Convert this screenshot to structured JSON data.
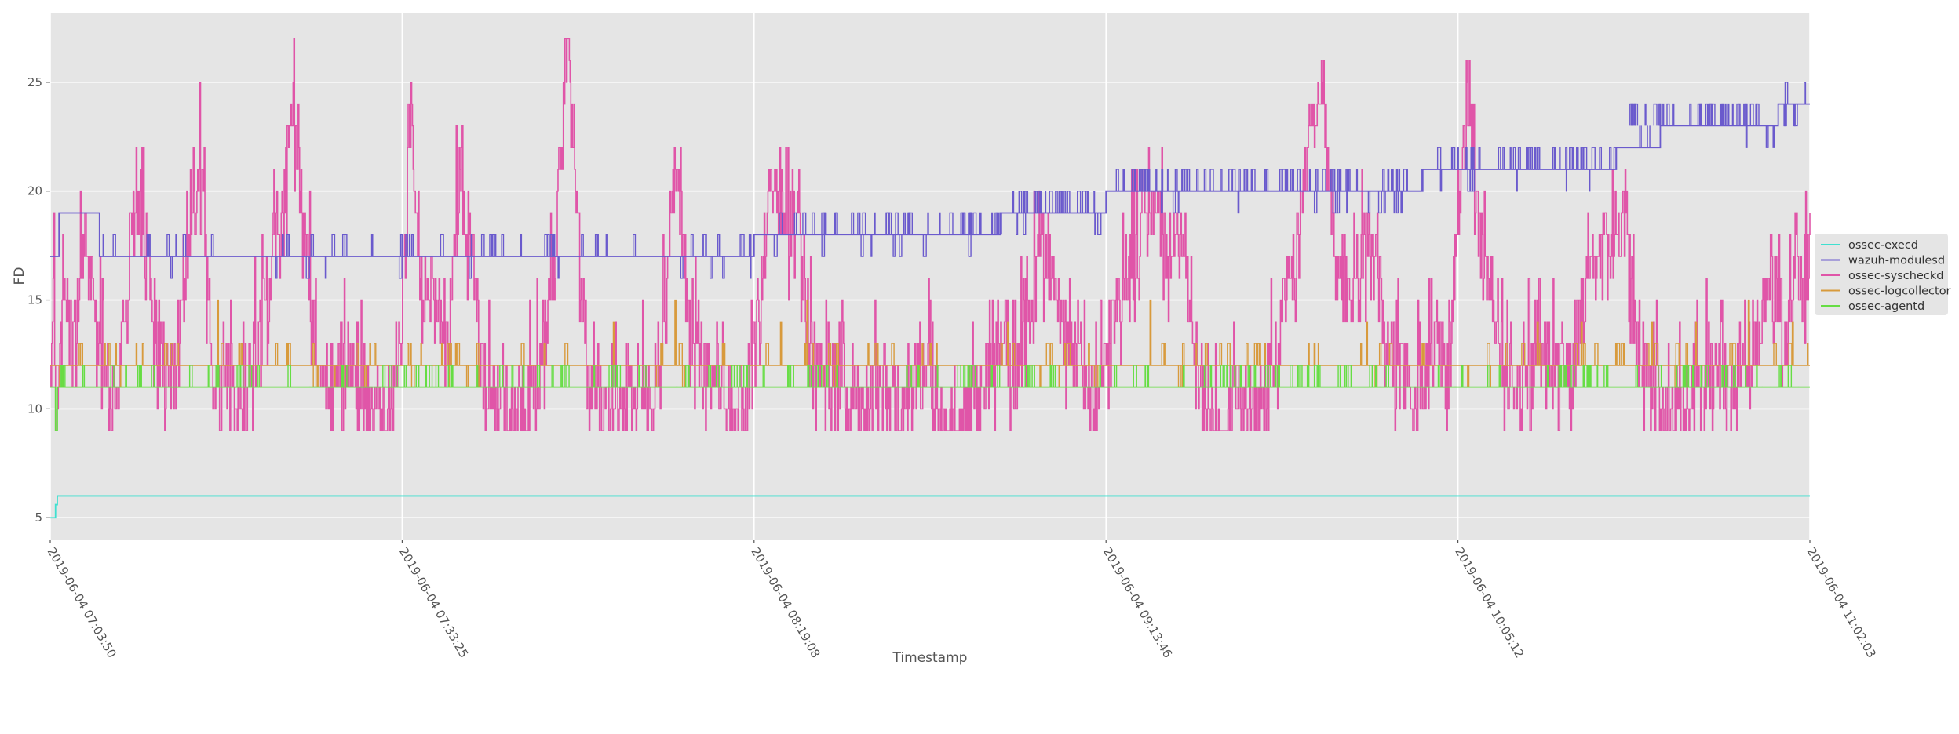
{
  "chart_data": {
    "type": "line",
    "title": "",
    "xlabel": "Timestamp",
    "ylabel": "FD",
    "ylim": [
      4,
      28.2
    ],
    "yticks": [
      5,
      10,
      15,
      20,
      25
    ],
    "grid": true,
    "legend_position": "right",
    "x_tick_labels": [
      "2019-06-04 07:03:50",
      "2019-06-04 07:33:25",
      "2019-06-04 08:19:08",
      "2019-06-04 09:13:46",
      "2019-06-04 10:05:12",
      "2019-06-04 11:02:03"
    ],
    "x_unit": "sample index (0-1000, tick labels show timestamps)",
    "xlim": [
      0,
      1000
    ],
    "x_ticks_at": [
      0,
      200,
      400,
      600,
      800,
      1000
    ],
    "colors": {
      "ossec-execd": "#40e0d0",
      "wazuh-modulesd": "#6a5acd",
      "ossec-syscheckd": "#e055a8",
      "ossec-logcollector": "#d89a3c",
      "ossec-agentd": "#66dd44"
    },
    "series": [
      {
        "name": "ossec-execd",
        "segments": [
          {
            "x": [
              0,
              3,
              3,
              4,
              4,
              1000
            ],
            "y": [
              5,
              5,
              5.6,
              5.6,
              6,
              6
            ]
          }
        ]
      },
      {
        "name": "wazuh-modulesd",
        "segments": [
          {
            "x": [
              0,
              5,
              5,
              28,
              28,
              290,
              290,
              400,
              400,
              430,
              430,
              540,
              540,
              600,
              600,
              660,
              660,
              780,
              780,
              890,
              890,
              915,
              915,
              982,
              982,
              1000
            ],
            "y": [
              17,
              17,
              19,
              19,
              17,
              17,
              17,
              17,
              18,
              18,
              18,
              18,
              19,
              19,
              20,
              20,
              20,
              20,
              21,
              21,
              22,
              22,
              23,
              23,
              24,
              24
            ]
          }
        ],
        "spike_ranges": [
          {
            "from": 30,
            "to": 290,
            "base": 17,
            "up": 18,
            "down": 16,
            "count": 40
          },
          {
            "from": 300,
            "to": 400,
            "base": 17,
            "up": 18,
            "down": 16,
            "count": 18
          },
          {
            "from": 410,
            "to": 540,
            "base": 18,
            "up": 19,
            "down": 17,
            "count": 45
          },
          {
            "from": 545,
            "to": 600,
            "base": 19,
            "up": 20,
            "down": 18,
            "count": 25
          },
          {
            "from": 605,
            "to": 660,
            "base": 20,
            "up": 21,
            "down": 19,
            "count": 25
          },
          {
            "from": 665,
            "to": 780,
            "base": 20,
            "up": 21,
            "down": 19,
            "count": 50
          },
          {
            "from": 785,
            "to": 890,
            "base": 21,
            "up": 22,
            "down": 20,
            "count": 45
          },
          {
            "from": 895,
            "to": 982,
            "base": 23,
            "up": 24,
            "down": 22,
            "count": 40
          },
          {
            "from": 985,
            "to": 1000,
            "base": 24,
            "up": 25,
            "down": 23,
            "count": 6
          }
        ]
      },
      {
        "name": "ossec-syscheckd",
        "keypoints": [
          [
            0,
            12
          ],
          [
            2,
            17
          ],
          [
            3,
            6
          ],
          [
            5,
            13
          ],
          [
            8,
            16
          ],
          [
            12,
            12
          ],
          [
            18,
            17
          ],
          [
            25,
            15
          ],
          [
            30,
            12
          ],
          [
            38,
            10
          ],
          [
            42,
            15
          ],
          [
            48,
            20
          ],
          [
            55,
            18
          ],
          [
            60,
            13
          ],
          [
            68,
            11
          ],
          [
            78,
            16
          ],
          [
            85,
            21
          ],
          [
            92,
            12
          ],
          [
            100,
            11
          ],
          [
            110,
            10
          ],
          [
            120,
            14
          ],
          [
            130,
            18
          ],
          [
            138,
            24
          ],
          [
            145,
            18
          ],
          [
            152,
            12
          ],
          [
            160,
            11
          ],
          [
            170,
            12
          ],
          [
            180,
            10
          ],
          [
            190,
            9
          ],
          [
            196,
            12
          ],
          [
            201,
            16
          ],
          [
            205,
            25
          ],
          [
            210,
            16
          ],
          [
            218,
            15
          ],
          [
            226,
            13
          ],
          [
            232,
            20
          ],
          [
            240,
            17
          ],
          [
            246,
            11
          ],
          [
            255,
            10
          ],
          [
            265,
            10
          ],
          [
            275,
            11
          ],
          [
            282,
            14
          ],
          [
            286,
            16
          ],
          [
            292,
            25
          ],
          [
            295,
            27
          ],
          [
            298,
            20
          ],
          [
            305,
            12
          ],
          [
            315,
            10
          ],
          [
            325,
            10
          ],
          [
            335,
            11
          ],
          [
            342,
            10
          ],
          [
            350,
            15
          ],
          [
            356,
            22
          ],
          [
            362,
            14
          ],
          [
            372,
            12
          ],
          [
            380,
            11
          ],
          [
            390,
            10
          ],
          [
            398,
            11
          ],
          [
            404,
            16
          ],
          [
            410,
            21
          ],
          [
            418,
            18
          ],
          [
            425,
            19
          ],
          [
            430,
            13
          ],
          [
            440,
            12
          ],
          [
            450,
            11
          ],
          [
            460,
            10
          ],
          [
            470,
            11
          ],
          [
            480,
            10
          ],
          [
            490,
            11
          ],
          [
            500,
            12
          ],
          [
            505,
            10
          ],
          [
            515,
            9
          ],
          [
            525,
            11
          ],
          [
            535,
            12
          ],
          [
            541,
            13
          ],
          [
            548,
            11
          ],
          [
            557,
            15
          ],
          [
            562,
            18
          ],
          [
            570,
            16
          ],
          [
            578,
            13
          ],
          [
            586,
            12
          ],
          [
            595,
            10
          ],
          [
            603,
            14
          ],
          [
            612,
            16
          ],
          [
            620,
            18
          ],
          [
            628,
            20
          ],
          [
            635,
            17
          ],
          [
            642,
            19
          ],
          [
            650,
            12
          ],
          [
            658,
            10
          ],
          [
            666,
            9
          ],
          [
            675,
            11
          ],
          [
            686,
            10
          ],
          [
            695,
            12
          ],
          [
            702,
            15
          ],
          [
            708,
            17
          ],
          [
            712,
            20
          ],
          [
            718,
            23
          ],
          [
            722,
            25
          ],
          [
            726,
            22
          ],
          [
            730,
            17
          ],
          [
            738,
            15
          ],
          [
            745,
            17
          ],
          [
            752,
            18
          ],
          [
            760,
            13
          ],
          [
            768,
            12
          ],
          [
            776,
            11
          ],
          [
            784,
            12
          ],
          [
            790,
            13
          ],
          [
            794,
            11
          ],
          [
            800,
            18
          ],
          [
            806,
            25
          ],
          [
            812,
            18
          ],
          [
            818,
            16
          ],
          [
            825,
            12
          ],
          [
            835,
            11
          ],
          [
            843,
            12
          ],
          [
            850,
            13
          ],
          [
            857,
            12
          ],
          [
            865,
            12
          ],
          [
            870,
            15
          ],
          [
            876,
            17
          ],
          [
            882,
            18
          ],
          [
            889,
            17
          ],
          [
            895,
            19
          ],
          [
            900,
            14
          ],
          [
            906,
            12
          ],
          [
            912,
            11
          ],
          [
            920,
            10
          ],
          [
            928,
            10
          ],
          [
            935,
            11
          ],
          [
            942,
            12
          ],
          [
            950,
            11
          ],
          [
            958,
            12
          ],
          [
            965,
            12
          ],
          [
            972,
            14
          ],
          [
            978,
            17
          ],
          [
            982,
            15
          ],
          [
            987,
            13
          ],
          [
            992,
            17
          ],
          [
            996,
            15
          ],
          [
            1000,
            18
          ]
        ],
        "noise_amplitude": 4
      },
      {
        "name": "ossec-logcollector",
        "segments": [
          {
            "x": [
              0,
              1000
            ],
            "y": [
              12,
              12
            ]
          }
        ],
        "spike_ranges": [
          {
            "from": 5,
            "to": 1000,
            "base": 12,
            "up": 13,
            "down": 11,
            "count": 120
          }
        ],
        "tall_spikes": [
          {
            "x": 95,
            "y": 15
          },
          {
            "x": 320,
            "y": 14
          },
          {
            "x": 355,
            "y": 15
          },
          {
            "x": 382,
            "y": 13
          },
          {
            "x": 415,
            "y": 14
          },
          {
            "x": 430,
            "y": 15
          },
          {
            "x": 500,
            "y": 13
          },
          {
            "x": 544,
            "y": 14
          },
          {
            "x": 590,
            "y": 13
          },
          {
            "x": 625,
            "y": 15
          },
          {
            "x": 690,
            "y": 13
          },
          {
            "x": 748,
            "y": 14
          },
          {
            "x": 780,
            "y": 13
          },
          {
            "x": 845,
            "y": 14
          },
          {
            "x": 870,
            "y": 14
          },
          {
            "x": 910,
            "y": 14
          },
          {
            "x": 935,
            "y": 14
          },
          {
            "x": 965,
            "y": 15
          },
          {
            "x": 990,
            "y": 14
          }
        ]
      },
      {
        "name": "ossec-agentd",
        "segments": [
          {
            "x": [
              0,
              3,
              3,
              4,
              4,
              5,
              5,
              1000
            ],
            "y": [
              11,
              11,
              9,
              9,
              11,
              11,
              11,
              11
            ]
          }
        ],
        "spike_ranges": [
          {
            "from": 5,
            "to": 1000,
            "base": 11,
            "up": 12,
            "down": 11,
            "count": 200
          }
        ]
      }
    ]
  },
  "legend": {
    "items": [
      {
        "label": "ossec-execd",
        "color": "#40e0d0"
      },
      {
        "label": "wazuh-modulesd",
        "color": "#6a5acd"
      },
      {
        "label": "ossec-syscheckd",
        "color": "#e055a8"
      },
      {
        "label": "ossec-logcollector",
        "color": "#d89a3c"
      },
      {
        "label": "ossec-agentd",
        "color": "#66dd44"
      }
    ]
  }
}
